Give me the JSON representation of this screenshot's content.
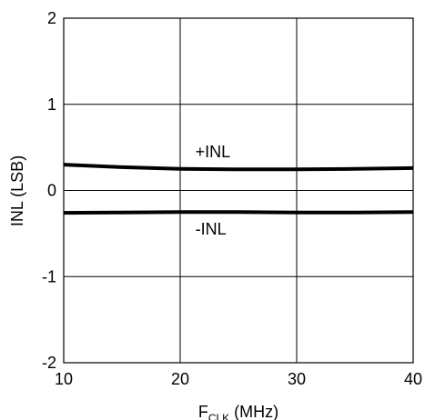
{
  "chart_data": {
    "type": "line",
    "title": "",
    "xlabel": "F",
    "xlabel_subscript": "CLK",
    "xlabel_unit": " (MHz)",
    "ylabel": "INL (LSB)",
    "xlim": [
      10,
      40
    ],
    "ylim": [
      -2,
      2
    ],
    "xticks": [
      10,
      20,
      30,
      40
    ],
    "yticks": [
      -2,
      -1,
      0,
      1,
      2
    ],
    "grid": true,
    "series": [
      {
        "x": [
          10,
          15,
          20,
          25,
          30,
          35,
          40
        ],
        "y": [
          0.3,
          0.27,
          0.25,
          0.245,
          0.245,
          0.25,
          0.26
        ]
      },
      {
        "x": [
          10,
          15,
          20,
          25,
          30,
          35,
          40
        ],
        "y": [
          -0.26,
          -0.255,
          -0.25,
          -0.25,
          -0.255,
          -0.255,
          -0.25
        ]
      }
    ],
    "annotations": [
      {
        "text": "+INL",
        "x": 21.3,
        "y": 0.45
      },
      {
        "text": "-INL",
        "x": 21.3,
        "y": -0.45
      }
    ],
    "colors": {
      "line": "#000000",
      "grid": "#000000",
      "background": "#ffffff"
    }
  }
}
